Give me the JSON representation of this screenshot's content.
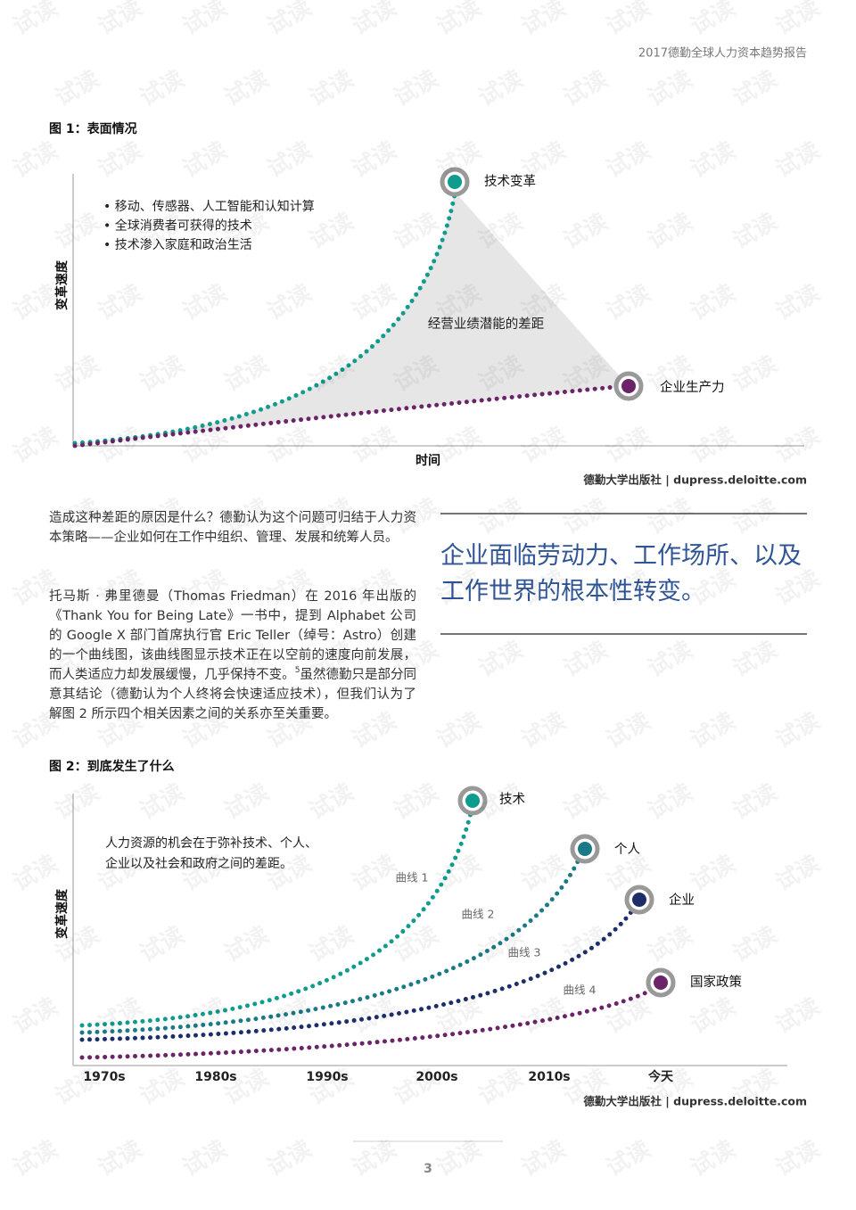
{
  "header": {
    "title": "2017德勤全球人力资本趋势报告"
  },
  "watermark": "试读",
  "figure1": {
    "title": "图 1：表面情况",
    "y_label": "变革速度",
    "x_label": "时间",
    "bullets": [
      "• 移动、传感器、人工智能和认知计算",
      "• 全球消费者可获得的技术",
      "• 技术渗入家庭和政治生活"
    ],
    "gap_label": "经营业绩潜能的差距",
    "tech_label": "技术变革",
    "productivity_label": "企业生产力",
    "source": "德勤大学出版社 | dupress.deloitte.com"
  },
  "body": {
    "paragraphs": [
      {
        "text": "造成这种差距的原因是什么？德勤认为这个问题可归结于人力资本策略——企业如何在工作中组织、管理、发展和统筹人员。"
      },
      {
        "before": "托马斯 · 弗里德曼（Thomas Friedman）在 2016 年出版的《Thank You for Being Late》一书中，提到 Alphabet 公司的 Google X 部门首席执行官 Eric Teller（绰号：Astro）创建的一个曲线图，该曲线图显示技术正在以空前的速度向前发展，而人类适应力却发展缓慢，几乎保持不变。",
        "footnote": "5",
        "after": "虽然德勤只是部分同意其结论（德勤认为个人终将会快速适应技术），但我们认为了解图 2 所示四个相关因素之间的关系亦至关重要。"
      }
    ],
    "quote": "企业面临劳动力、工作场所、以及工作世界的根本性转变。"
  },
  "figure2": {
    "title": "图 2：到底发生了什么",
    "y_label": "变革速度",
    "note": [
      "人力资源的机会在于弥补技术、个人、",
      "企业以及社会和政府之间的差距。"
    ],
    "categories": [
      "1970s",
      "1980s",
      "1990s",
      "2000s",
      "2010s",
      "今天"
    ],
    "curves": [
      {
        "name": "技术",
        "label": "曲线 1",
        "color": "#0f9b8e"
      },
      {
        "name": "个人",
        "label": "曲线 2",
        "color": "#1a7a86"
      },
      {
        "name": "企业",
        "label": "曲线 3",
        "color": "#1d2e6b"
      },
      {
        "name": "国家政策",
        "label": "曲线 4",
        "color": "#6b2468"
      }
    ],
    "source": "德勤大学出版社 | dupress.deloitte.com"
  },
  "footer": {
    "page": "3"
  }
}
